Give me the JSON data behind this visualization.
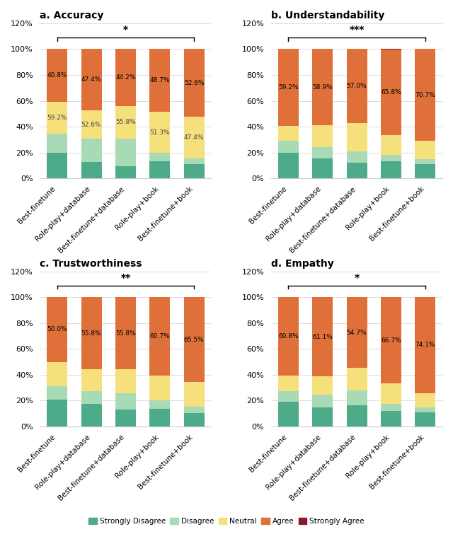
{
  "categories": [
    "Best-finetune",
    "Role-play+database",
    "Best-finetune+database",
    "Role-play+book",
    "Best-finetune+book"
  ],
  "colors": {
    "strongly_disagree": "#4dab8a",
    "disagree": "#a8dab5",
    "neutral": "#f5e07c",
    "agree": "#e0703a",
    "strongly_agree": "#8b1a2e"
  },
  "subplots": [
    {
      "title": "a. Accuracy",
      "significance": "*",
      "data": {
        "strongly_disagree": [
          20.0,
          12.5,
          9.5,
          13.5,
          11.0
        ],
        "disagree": [
          14.5,
          18.0,
          21.5,
          6.5,
          4.5
        ],
        "neutral": [
          24.7,
          22.1,
          24.8,
          31.3,
          32.0
        ],
        "agree": [
          40.8,
          47.4,
          44.2,
          48.7,
          52.6
        ],
        "strongly_agree": [
          0.0,
          0.0,
          0.0,
          0.0,
          0.0
        ]
      },
      "agree_labels": [
        "40.8%",
        "47.4%",
        "44.2%",
        "48.7%",
        "52.6%"
      ],
      "neutral_labels": [
        "59.2%",
        "52.6%",
        "55.8%",
        "51.3%",
        "47.4%"
      ]
    },
    {
      "title": "b. Understandability",
      "significance": "***",
      "data": {
        "strongly_disagree": [
          20.0,
          15.5,
          12.0,
          13.5,
          11.0
        ],
        "disagree": [
          9.0,
          8.5,
          9.0,
          4.5,
          4.0
        ],
        "neutral": [
          11.8,
          17.1,
          22.0,
          15.7,
          14.3
        ],
        "agree": [
          59.2,
          58.9,
          57.0,
          65.8,
          70.7
        ],
        "strongly_agree": [
          0.0,
          0.0,
          0.0,
          0.5,
          0.0
        ]
      },
      "agree_labels": [
        "59.2%",
        "58.9%",
        "57.0%",
        "65.8%",
        "70.7%"
      ],
      "neutral_labels": []
    },
    {
      "title": "c. Trustworthiness",
      "significance": "**",
      "data": {
        "strongly_disagree": [
          20.5,
          17.5,
          13.0,
          13.5,
          10.5
        ],
        "disagree": [
          10.5,
          10.0,
          12.5,
          6.5,
          5.0
        ],
        "neutral": [
          19.0,
          16.7,
          18.7,
          19.3,
          19.0
        ],
        "agree": [
          50.0,
          55.8,
          55.8,
          60.7,
          65.5
        ],
        "strongly_agree": [
          0.0,
          0.0,
          0.0,
          0.0,
          0.0
        ]
      },
      "agree_labels": [
        "50.0%",
        "55.8%",
        "55.8%",
        "60.7%",
        "65.5%"
      ],
      "neutral_labels": []
    },
    {
      "title": "d. Empathy",
      "significance": "*",
      "data": {
        "strongly_disagree": [
          19.0,
          15.0,
          16.5,
          12.0,
          11.0
        ],
        "disagree": [
          8.5,
          9.5,
          11.5,
          5.5,
          4.0
        ],
        "neutral": [
          11.7,
          14.4,
          17.3,
          15.8,
          10.9
        ],
        "agree": [
          60.8,
          61.1,
          54.7,
          66.7,
          74.1
        ],
        "strongly_agree": [
          0.0,
          0.0,
          0.0,
          0.0,
          0.0
        ]
      },
      "agree_labels": [
        "60.8%",
        "61.1%",
        "54.7%",
        "66.7%",
        "74.1%"
      ],
      "neutral_labels": []
    }
  ],
  "legend_labels": [
    "Strongly Disagree",
    "Disagree",
    "Neutral",
    "Agree",
    "Strongly Agree"
  ],
  "legend_colors": [
    "#4dab8a",
    "#a8dab5",
    "#f5e07c",
    "#e0703a",
    "#8b1a2e"
  ],
  "ytick_labels": [
    "0%",
    "20%",
    "40%",
    "60%",
    "80%",
    "100%",
    "120%"
  ],
  "background_color": "#ffffff"
}
